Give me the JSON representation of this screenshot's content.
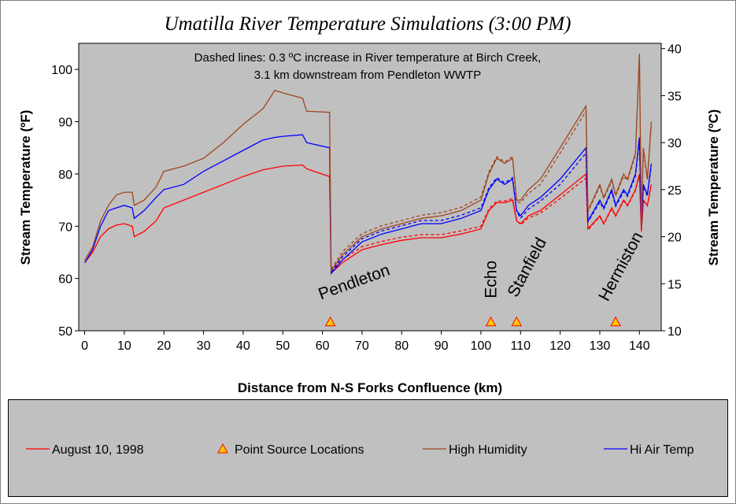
{
  "chart_data": {
    "type": "line",
    "title": "Umatilla River Temperature Simulations (3:00 PM)",
    "annotation": [
      "Dashed lines:  0.3 ºC increase in River temperature at Birch Creek,",
      "3.1 km downstream from Pendleton WWTP"
    ],
    "xlabel": "Distance from N-S Forks Confluence (km)",
    "ylabel": "Stream Temperature (ºF)",
    "y2label": "Stream Temperature (ºC)",
    "xlim": [
      -1.5,
      145.5
    ],
    "xticks": [
      0,
      10,
      20,
      30,
      40,
      50,
      60,
      70,
      80,
      90,
      100,
      110,
      120,
      130,
      140
    ],
    "ylim": [
      50,
      105
    ],
    "yticks": [
      50,
      60,
      70,
      80,
      90,
      100
    ],
    "y2lim": [
      10,
      40.56
    ],
    "y2ticks": [
      10,
      15,
      20,
      25,
      30,
      35,
      40
    ],
    "x": [
      0,
      2,
      4,
      6,
      8,
      10,
      12,
      12.5,
      15,
      18,
      20,
      25,
      30,
      35,
      40,
      45,
      48,
      50,
      55,
      56,
      61.8,
      62.2,
      65,
      70,
      75,
      80,
      85,
      90,
      95,
      100,
      102,
      104,
      106,
      108,
      109,
      110,
      112,
      115,
      120,
      126.5,
      127,
      130,
      131,
      133,
      134,
      136,
      137,
      139,
      140,
      140.5,
      141,
      142,
      143
    ],
    "series": [
      {
        "name": "August 10, 1998",
        "color": "#ff0000",
        "values": [
          63,
          65,
          68,
          69.5,
          70.2,
          70.5,
          70,
          68,
          69,
          71,
          73.5,
          75,
          76.5,
          78,
          79.5,
          80.8,
          81.2,
          81.5,
          81.7,
          81,
          79.5,
          61,
          63,
          65.5,
          66.5,
          67.3,
          67.8,
          67.8,
          68.5,
          69.5,
          73,
          74.5,
          74.5,
          75,
          71,
          70.5,
          72,
          73,
          76,
          80,
          69.5,
          72,
          70.5,
          73.5,
          72,
          75,
          74,
          77,
          80,
          69,
          75,
          74,
          78
        ]
      },
      {
        "name": "High Humidity",
        "color": "#a0461e",
        "values": [
          63.5,
          66,
          71,
          74,
          76,
          76.5,
          76.5,
          74,
          75,
          77.5,
          80.5,
          81.5,
          83,
          86,
          89.5,
          92.5,
          96,
          95.5,
          94.5,
          92,
          91.8,
          61.5,
          64.5,
          68,
          69.5,
          70.5,
          71.5,
          72,
          73,
          75,
          80,
          83,
          82,
          83,
          75,
          75,
          77,
          79,
          85,
          93,
          73,
          78,
          75.5,
          79,
          76,
          80,
          79,
          84,
          103,
          70,
          85,
          79,
          90
        ]
      },
      {
        "name": "Hi Air Temp",
        "color": "#0000ff",
        "values": [
          63,
          65.5,
          70,
          73,
          73.5,
          74,
          73.5,
          71.5,
          73,
          75.5,
          77,
          78,
          80.5,
          82.5,
          84.5,
          86.5,
          87,
          87.2,
          87.5,
          86,
          85,
          61,
          63.5,
          67,
          68.5,
          69.5,
          70.5,
          70.5,
          71.5,
          73,
          77,
          79,
          78,
          79,
          73,
          72,
          74,
          75.5,
          79,
          85,
          71,
          75,
          73.5,
          77,
          74,
          77,
          76,
          80,
          87,
          70,
          78,
          76,
          82
        ]
      },
      {
        "dashed": true,
        "color": "#ff0000",
        "values": [
          null,
          null,
          null,
          null,
          null,
          null,
          null,
          null,
          null,
          null,
          null,
          null,
          null,
          null,
          null,
          null,
          null,
          null,
          null,
          null,
          null,
          61.3,
          63.6,
          66.1,
          67.1,
          67.9,
          68.4,
          68.4,
          69.1,
          70,
          73.3,
          74.8,
          74.8,
          75.3,
          71.2,
          70.3,
          71.6,
          72.5,
          75.3,
          79.2,
          69.3,
          71.8,
          70.4,
          73.3,
          71.9,
          74.8,
          73.9,
          76.8,
          79.8,
          69,
          74.8,
          73.9,
          77.8
        ]
      },
      {
        "dashed": true,
        "color": "#a0461e",
        "values": [
          null,
          null,
          null,
          null,
          null,
          null,
          null,
          null,
          null,
          null,
          null,
          null,
          null,
          null,
          null,
          null,
          null,
          null,
          null,
          null,
          null,
          61.8,
          65.1,
          68.6,
          70.1,
          71.1,
          72.1,
          72.6,
          73.6,
          75.6,
          80.4,
          83.3,
          82.3,
          83.3,
          74.7,
          74.5,
          76.3,
          78,
          84,
          92,
          72.8,
          77.6,
          75.3,
          78.6,
          75.8,
          79.6,
          78.7,
          83.6,
          102.5,
          70,
          84.6,
          78.8,
          89.5
        ]
      },
      {
        "dashed": true,
        "color": "#0000ff",
        "values": [
          null,
          null,
          null,
          null,
          null,
          null,
          null,
          null,
          null,
          null,
          null,
          null,
          null,
          null,
          null,
          null,
          null,
          null,
          null,
          null,
          null,
          61.3,
          64.1,
          67.6,
          69.1,
          70.1,
          71.1,
          71.1,
          72.1,
          73.5,
          77.3,
          79.3,
          78.3,
          79.3,
          72.8,
          71.5,
          73.3,
          74.8,
          78,
          84,
          70.8,
          74.6,
          73.3,
          76.6,
          73.8,
          76.6,
          75.7,
          79.6,
          86.5,
          70,
          77.6,
          75.8,
          81.6
        ]
      }
    ],
    "point_sources": {
      "name": "Point Source Locations",
      "color": "#ffcc00",
      "edge_color": "#ff0000",
      "x": [
        62,
        102.5,
        109,
        134
      ],
      "values": [
        51.7,
        51.7,
        51.7,
        51.7
      ],
      "labels": [
        "Pendleton",
        "Echo",
        "Stanfield",
        "Hermiston"
      ]
    },
    "plot_background": "#c0c0c0"
  }
}
